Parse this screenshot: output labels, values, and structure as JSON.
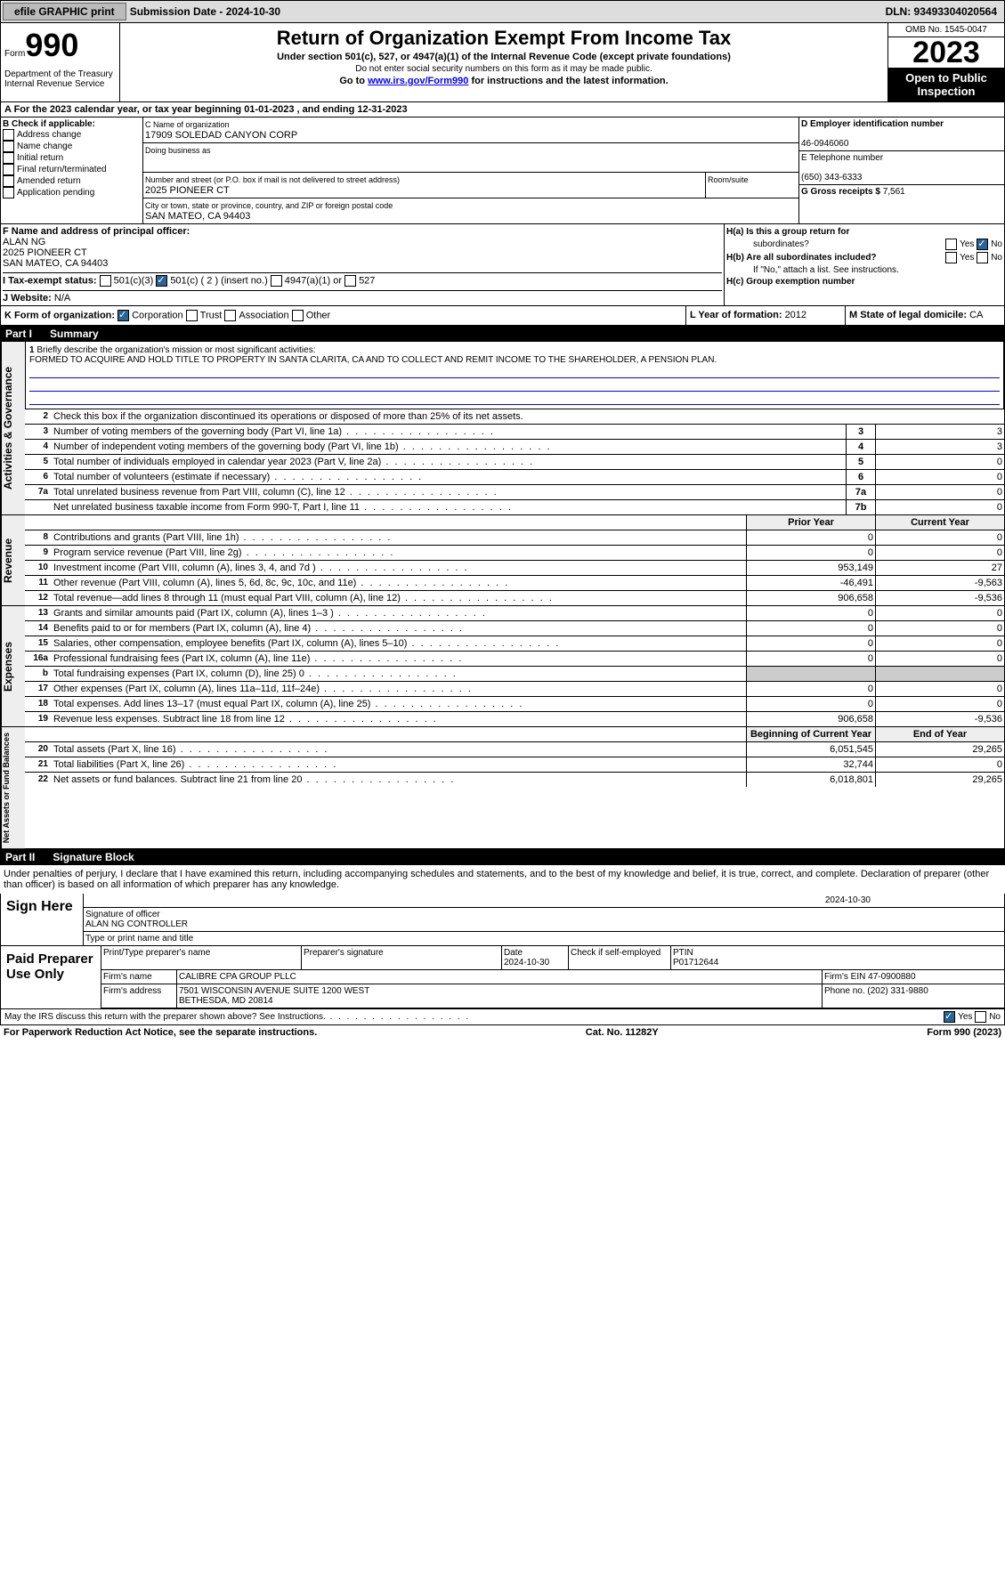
{
  "topbar": {
    "efile": "efile GRAPHIC print",
    "sub_label": "Submission Date - 2024-10-30",
    "dln": "DLN: 93493304020564"
  },
  "header": {
    "form": "Form",
    "number": "990",
    "dept": "Department of the Treasury\nInternal Revenue Service",
    "title": "Return of Organization Exempt From Income Tax",
    "sub1": "Under section 501(c), 527, or 4947(a)(1) of the Internal Revenue Code (except private foundations)",
    "note1": "Do not enter social security numbers on this form as it may be made public.",
    "goto": "Go to ",
    "link": "www.irs.gov/Form990",
    "goto2": " for instructions and the latest information.",
    "omb": "OMB No. 1545-0047",
    "year": "2023",
    "open": "Open to Public Inspection"
  },
  "cal": "A For the 2023 calendar year, or tax year beginning 01-01-2023   , and ending 12-31-2023",
  "B": {
    "hdr": "B Check if applicable:",
    "items": [
      "Address change",
      "Name change",
      "Initial return",
      "Final return/terminated",
      "Amended return",
      "Application pending"
    ]
  },
  "C": {
    "name_lbl": "C Name of organization",
    "name": "17909 SOLEDAD CANYON CORP",
    "dba_lbl": "Doing business as",
    "dba": "",
    "street_lbl": "Number and street (or P.O. box if mail is not delivered to street address)",
    "street": "2025 PIONEER CT",
    "room_lbl": "Room/suite",
    "city_lbl": "City or town, state or province, country, and ZIP or foreign postal code",
    "city": "SAN MATEO, CA  94403"
  },
  "D": {
    "ein_lbl": "D Employer identification number",
    "ein": "46-0946060",
    "tel_lbl": "E Telephone number",
    "tel": "(650) 343-6333",
    "gross_lbl": "G Gross receipts $ ",
    "gross": "7,561"
  },
  "F": {
    "lbl": "F  Name and address of principal officer:",
    "name": "ALAN NG",
    "addr1": "2025 PIONEER CT",
    "addr2": "SAN MATEO, CA  94403"
  },
  "H": {
    "a": "H(a)  Is this a group return for",
    "a2": "subordinates?",
    "b": "H(b)  Are all subordinates included?",
    "bnote": "If \"No,\" attach a list. See instructions.",
    "c": "H(c)  Group exemption number",
    "yes": "Yes",
    "no": "No"
  },
  "I": {
    "lbl": "I    Tax-exempt status:",
    "c3": "501(c)(3)",
    "c": "501(c) ( 2 ) (insert no.)",
    "a": "4947(a)(1) or",
    "527": "527"
  },
  "J": {
    "lbl": "J   Website:",
    "val": "N/A"
  },
  "K": {
    "lbl": "K Form of organization:",
    "corp": "Corporation",
    "trust": "Trust",
    "assoc": "Association",
    "other": "Other"
  },
  "L": {
    "lbl": "L Year of formation: ",
    "val": "2012"
  },
  "M": {
    "lbl": "M State of legal domicile: ",
    "val": "CA"
  },
  "part1": {
    "hdr": "Part I",
    "title": "Summary"
  },
  "summary": {
    "q1": "Briefly describe the organization's mission or most significant activities:",
    "mission": "FORMED TO ACQUIRE AND HOLD TITLE TO PROPERTY IN SANTA CLARITA, CA AND TO COLLECT AND REMIT INCOME TO THE SHAREHOLDER, A PENSION PLAN.",
    "q2": "Check this box      if the organization discontinued its operations or disposed of more than 25% of its net assets.",
    "lines": [
      {
        "n": "3",
        "t": "Number of voting members of the governing body (Part VI, line 1a)",
        "b": "3",
        "v": "3"
      },
      {
        "n": "4",
        "t": "Number of independent voting members of the governing body (Part VI, line 1b)",
        "b": "4",
        "v": "3"
      },
      {
        "n": "5",
        "t": "Total number of individuals employed in calendar year 2023 (Part V, line 2a)",
        "b": "5",
        "v": "0"
      },
      {
        "n": "6",
        "t": "Total number of volunteers (estimate if necessary)",
        "b": "6",
        "v": "0"
      },
      {
        "n": "7a",
        "t": "Total unrelated business revenue from Part VIII, column (C), line 12",
        "b": "7a",
        "v": "0"
      },
      {
        "n": "",
        "t": "Net unrelated business taxable income from Form 990-T, Part I, line 11",
        "b": "7b",
        "v": "0"
      }
    ],
    "side1": "Activities & Governance"
  },
  "revenue": {
    "side": "Revenue",
    "hdr_prior": "Prior Year",
    "hdr_curr": "Current Year",
    "lines": [
      {
        "n": "8",
        "t": "Contributions and grants (Part VIII, line 1h)",
        "p": "0",
        "c": "0"
      },
      {
        "n": "9",
        "t": "Program service revenue (Part VIII, line 2g)",
        "p": "0",
        "c": "0"
      },
      {
        "n": "10",
        "t": "Investment income (Part VIII, column (A), lines 3, 4, and 7d )",
        "p": "953,149",
        "c": "27"
      },
      {
        "n": "11",
        "t": "Other revenue (Part VIII, column (A), lines 5, 6d, 8c, 9c, 10c, and 11e)",
        "p": "-46,491",
        "c": "-9,563"
      },
      {
        "n": "12",
        "t": "Total revenue—add lines 8 through 11 (must equal Part VIII, column (A), line 12)",
        "p": "906,658",
        "c": "-9,536"
      }
    ]
  },
  "expenses": {
    "side": "Expenses",
    "lines": [
      {
        "n": "13",
        "t": "Grants and similar amounts paid (Part IX, column (A), lines 1–3 )",
        "p": "0",
        "c": "0"
      },
      {
        "n": "14",
        "t": "Benefits paid to or for members (Part IX, column (A), line 4)",
        "p": "0",
        "c": "0"
      },
      {
        "n": "15",
        "t": "Salaries, other compensation, employee benefits (Part IX, column (A), lines 5–10)",
        "p": "0",
        "c": "0"
      },
      {
        "n": "16a",
        "t": "Professional fundraising fees (Part IX, column (A), line 11e)",
        "p": "0",
        "c": "0"
      },
      {
        "n": "b",
        "t": "Total fundraising expenses (Part IX, column (D), line 25) 0",
        "p": "",
        "c": "",
        "shade": true
      },
      {
        "n": "17",
        "t": "Other expenses (Part IX, column (A), lines 11a–11d, 11f–24e)",
        "p": "0",
        "c": "0"
      },
      {
        "n": "18",
        "t": "Total expenses. Add lines 13–17 (must equal Part IX, column (A), line 25)",
        "p": "0",
        "c": "0"
      },
      {
        "n": "19",
        "t": "Revenue less expenses. Subtract line 18 from line 12",
        "p": "906,658",
        "c": "-9,536"
      }
    ]
  },
  "netassets": {
    "side": "Net Assets or Fund Balances",
    "hdr_p": "Beginning of Current Year",
    "hdr_c": "End of Year",
    "lines": [
      {
        "n": "20",
        "t": "Total assets (Part X, line 16)",
        "p": "6,051,545",
        "c": "29,265"
      },
      {
        "n": "21",
        "t": "Total liabilities (Part X, line 26)",
        "p": "32,744",
        "c": "0"
      },
      {
        "n": "22",
        "t": "Net assets or fund balances. Subtract line 21 from line 20",
        "p": "6,018,801",
        "c": "29,265"
      }
    ]
  },
  "part2": {
    "hdr": "Part II",
    "title": "Signature Block"
  },
  "decl": "Under penalties of perjury, I declare that I have examined this return, including accompanying schedules and statements, and to the best of my knowledge and belief, it is true, correct, and complete. Declaration of preparer (other than officer) is based on all information of which preparer has any knowledge.",
  "sign": {
    "lbl": "Sign Here",
    "sig": "Signature of officer",
    "date": "2024-10-30",
    "name": "ALAN NG CONTROLLER",
    "title": "Type or print name and title"
  },
  "prep": {
    "lbl": "Paid Preparer Use Only",
    "pname_lbl": "Print/Type preparer's name",
    "psig_lbl": "Preparer's signature",
    "pdate_lbl": "Date",
    "pdate": "2024-10-30",
    "pself": "Check      if self-employed",
    "ptin_lbl": "PTIN",
    "ptin": "P01712644",
    "firm_lbl": "Firm's name",
    "firm": "CALIBRE CPA GROUP PLLC",
    "fein_lbl": "Firm's EIN",
    "fein": "47-0900880",
    "faddr_lbl": "Firm's address",
    "faddr": "7501 WISCONSIN AVENUE SUITE 1200 WEST\nBETHESDA, MD  20814",
    "phone_lbl": "Phone no.",
    "phone": "(202) 331-9880"
  },
  "discuss": "May the IRS discuss this return with the preparer shown above? See Instructions.",
  "foot": {
    "l": "For Paperwork Reduction Act Notice, see the separate instructions.",
    "m": "Cat. No. 11282Y",
    "r": "Form 990 (2023)"
  }
}
